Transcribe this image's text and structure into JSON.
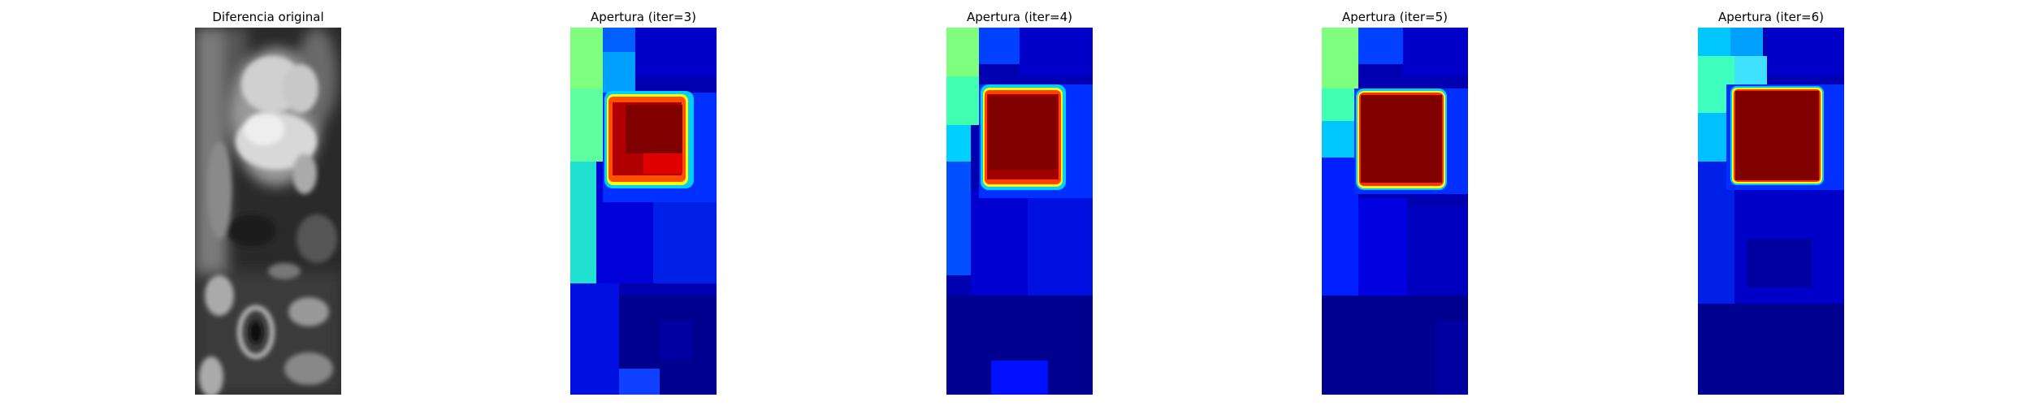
{
  "panels": [
    {
      "title": "Diferencia original",
      "colormap": "gray"
    },
    {
      "title": "Apertura (iter=3)",
      "colormap": "jet"
    },
    {
      "title": "Apertura (iter=4)",
      "colormap": "jet"
    },
    {
      "title": "Apertura (iter=5)",
      "colormap": "jet"
    },
    {
      "title": "Apertura (iter=6)",
      "colormap": "jet"
    }
  ],
  "colors": {
    "jet_dark_red": "#800000",
    "jet_blue": "#0000e0",
    "jet_navy": "#00008f",
    "jet_cyan": "#00e5ff",
    "jet_green": "#7fff7f"
  }
}
